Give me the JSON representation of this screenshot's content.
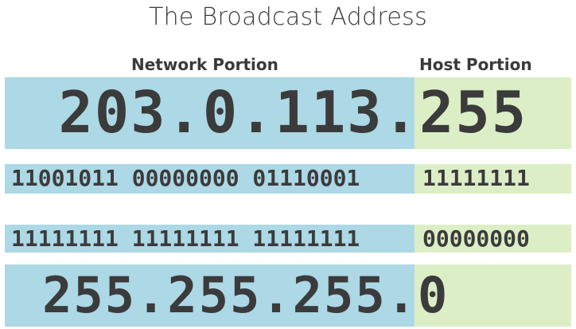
{
  "title": "The Broadcast Address",
  "labels": {
    "network": "Network Portion",
    "host": "Host Portion"
  },
  "colors": {
    "network_band": "#add8e6",
    "host_band": "#dceec6",
    "text": "#3b3b3b"
  },
  "rows": [
    {
      "network": "203.0.113.",
      "host": "255"
    },
    {
      "network": "11001011 00000000 01110001",
      "host": "11111111"
    },
    {
      "network": "11111111 11111111 11111111",
      "host": "00000000"
    },
    {
      "network": "255.255.255.",
      "host": "0"
    }
  ]
}
